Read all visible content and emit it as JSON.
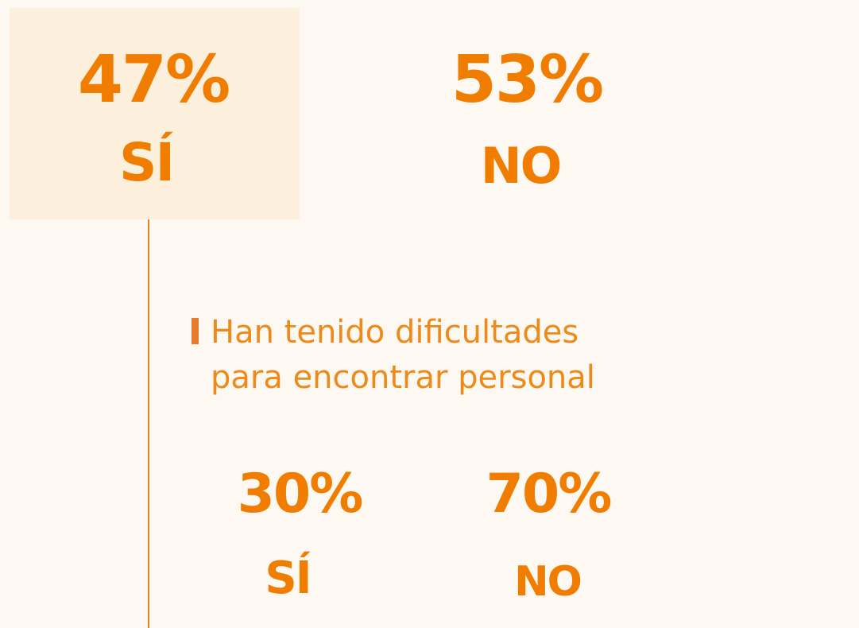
{
  "top": {
    "items": [
      {
        "value": "47%",
        "label": "SÍ"
      },
      {
        "value": "53%",
        "label": "NO"
      }
    ]
  },
  "question": {
    "lines": [
      "Han tenido dificultades",
      "para encontrar personal"
    ]
  },
  "bottom": {
    "items": [
      {
        "value": "30%",
        "label": "SÍ"
      },
      {
        "value": "70%",
        "label": "NO"
      }
    ]
  }
}
